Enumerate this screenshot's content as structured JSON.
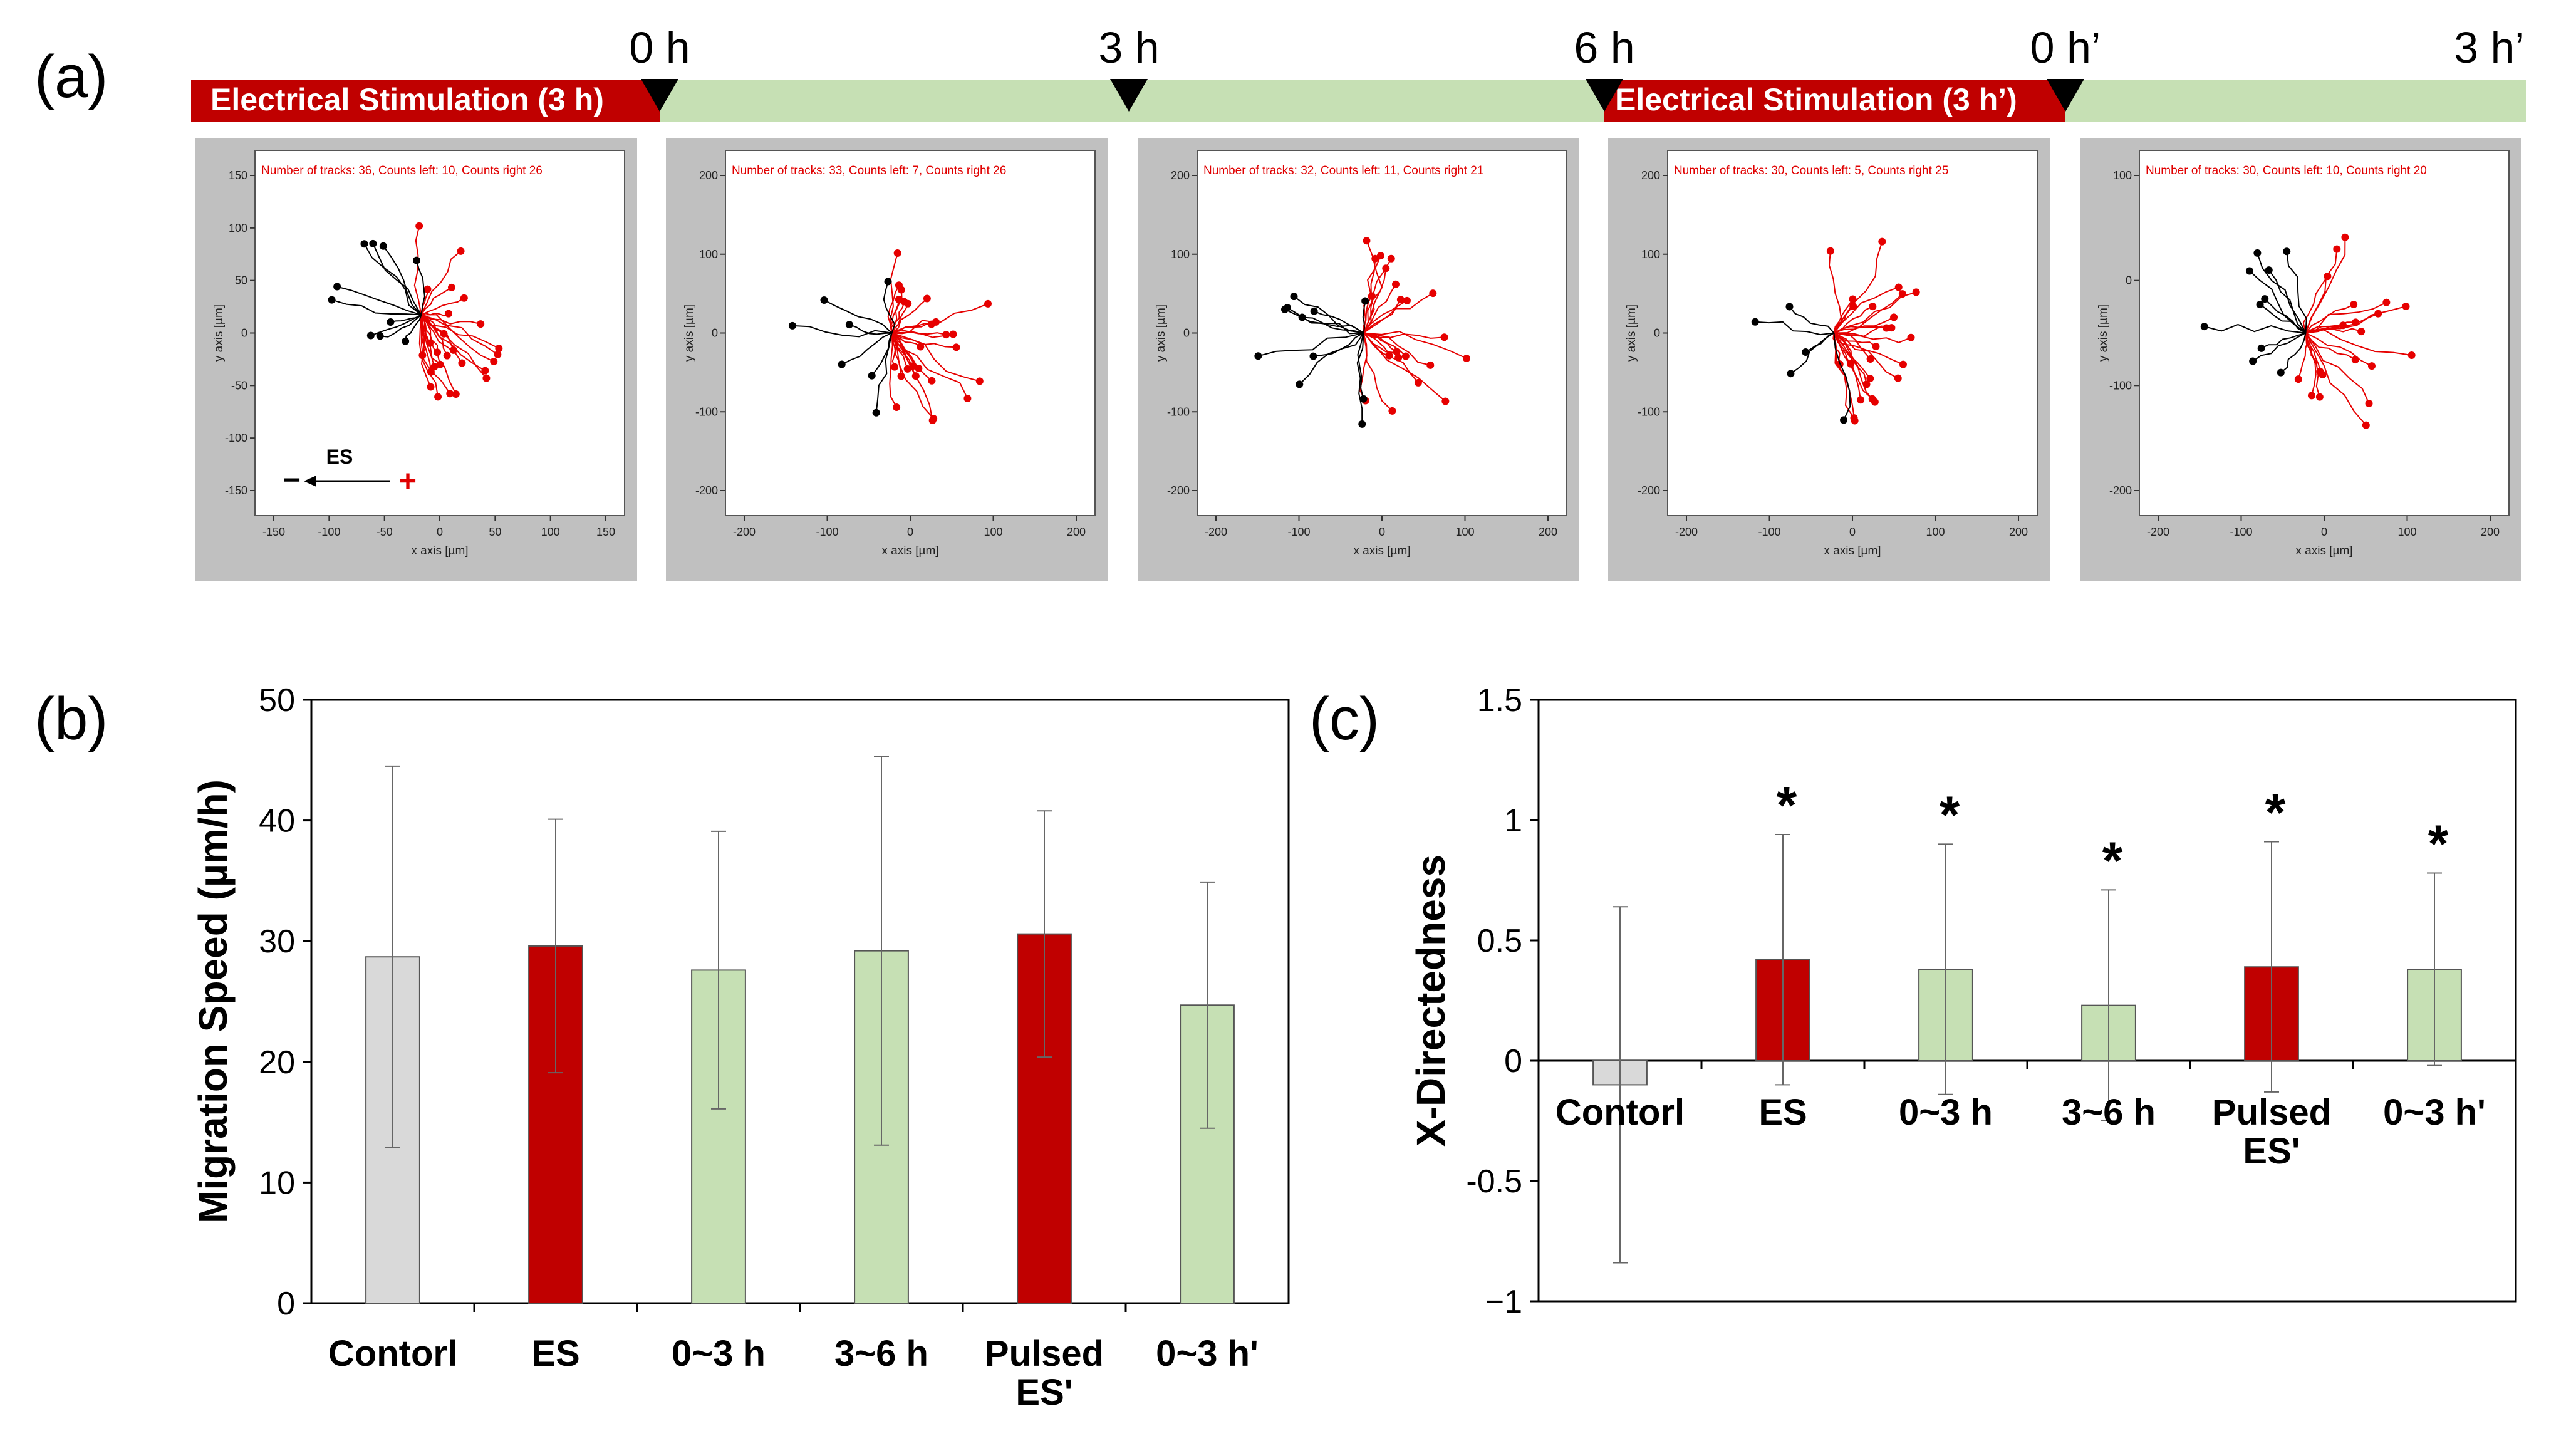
{
  "panel_labels": {
    "a": "(a)",
    "b": "(b)",
    "c": "(c)"
  },
  "timeline": {
    "time_labels": [
      "0 h",
      "3 h",
      "6 h",
      "0 h’",
      "3 h’"
    ],
    "segments": [
      {
        "label": "Electrical Stimulation (3 h)",
        "kind": "stim"
      },
      {
        "label": "",
        "kind": "rest"
      },
      {
        "label": "Electrical Stimulation (3 h’)",
        "kind": "stim"
      },
      {
        "label": "",
        "kind": "rest"
      }
    ]
  },
  "track_panels": [
    {
      "caption": "Number of tracks: 36, Counts left: 10, Counts right 26",
      "x_ticks": [
        "-150",
        "-100",
        "-50",
        "0",
        "50",
        "100",
        "150"
      ],
      "y_ticks": [
        "150",
        "100",
        "50",
        "0",
        "-50",
        "-100",
        "-150"
      ],
      "xlabel": "x axis [µm]",
      "ylabel": "y axis [µm]",
      "es_label": "ES",
      "minus": "−",
      "plus": "+"
    },
    {
      "caption": "Number of tracks: 33, Counts left: 7, Counts right 26",
      "x_ticks": [
        "-200",
        "-100",
        "0",
        "100",
        "200"
      ],
      "y_ticks": [
        "200",
        "100",
        "0",
        "-100",
        "-200"
      ],
      "xlabel": "x axis [µm]",
      "ylabel": "y axis [µm]"
    },
    {
      "caption": "Number of tracks: 32, Counts left: 11, Counts right 21",
      "x_ticks": [
        "-200",
        "-100",
        "0",
        "100",
        "200"
      ],
      "y_ticks": [
        "200",
        "100",
        "0",
        "-100",
        "-200"
      ],
      "xlabel": "x axis [µm]",
      "ylabel": "y axis [µm]"
    },
    {
      "caption": "Number of tracks: 30, Counts left: 5, Counts right 25",
      "x_ticks": [
        "-200",
        "-100",
        "0",
        "100",
        "200"
      ],
      "y_ticks": [
        "200",
        "100",
        "0",
        "-100",
        "-200"
      ],
      "xlabel": "x axis [µm]",
      "ylabel": "y axis [µm]"
    },
    {
      "caption": "Number of tracks: 30, Counts left: 10, Counts right 20",
      "x_ticks": [
        "-200",
        "-100",
        "0",
        "100",
        "200"
      ],
      "y_ticks": [
        "100",
        "0",
        "-100",
        "-200"
      ],
      "xlabel": "x axis [µm]",
      "ylabel": "y axis [µm]"
    }
  ],
  "chart_data": [
    {
      "type": "bar",
      "ylabel": "Migration Speed (µm/h)",
      "ylim": [
        0,
        50
      ],
      "yticks": [
        0,
        10,
        20,
        30,
        40,
        50
      ],
      "categories": [
        "Contorl",
        "ES",
        "0~3 h",
        "3~6 h",
        "Pulsed ES'",
        "0~3 h'"
      ],
      "values": [
        28.7,
        29.6,
        27.6,
        29.2,
        30.6,
        24.7
      ],
      "errors": [
        15.8,
        10.5,
        11.5,
        16.1,
        10.2,
        10.2
      ],
      "colors": [
        "#d9d9d9",
        "#c00000",
        "#c6e0b4",
        "#c6e0b4",
        "#c00000",
        "#c6e0b4"
      ]
    },
    {
      "type": "bar",
      "ylabel": "X-Directedness",
      "ylim": [
        -1,
        1.5
      ],
      "yticks": [
        "1.5",
        "1",
        "0.5",
        "0",
        "-0.5",
        "−1"
      ],
      "categories": [
        "Contorl",
        "ES",
        "0~3 h",
        "3~6 h",
        "Pulsed ES'",
        "0~3 h'"
      ],
      "values": [
        -0.1,
        0.42,
        0.38,
        0.23,
        0.39,
        0.38
      ],
      "errors": [
        0.74,
        0.52,
        0.52,
        0.48,
        0.52,
        0.4
      ],
      "significance": [
        "",
        "*",
        "*",
        "*",
        "*",
        "*"
      ],
      "colors": [
        "#d9d9d9",
        "#c00000",
        "#c6e0b4",
        "#c6e0b4",
        "#c00000",
        "#c6e0b4"
      ]
    }
  ]
}
